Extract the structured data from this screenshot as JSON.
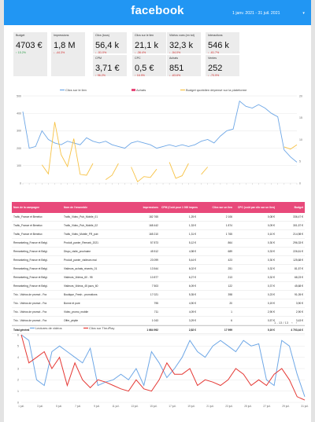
{
  "header": {
    "brand": "facebook",
    "date_range": "1 janv. 2021 - 31 juil. 2021"
  },
  "kpis": [
    {
      "label": "Budget",
      "value": "4703 €",
      "delta": "↑ 15.2%",
      "dir": "up"
    },
    {
      "label": "Impressions",
      "value": "1,8 M",
      "delta": "↓ -44.3%",
      "dir": "down"
    },
    {
      "label": "Clics (tous)",
      "value": "56,4 k",
      "delta": "↓ -51.0%",
      "dir": "down"
    },
    {
      "label": "Clics sur le lien",
      "value": "21,1 k",
      "delta": "↓ -36.4%",
      "dir": "down"
    },
    {
      "label": "Vidéos vues (en tot)",
      "value": "32,3 k",
      "delta": "↓ -54.0%",
      "dir": "down"
    },
    {
      "label": "Interactions",
      "value": "546 k",
      "delta": "↓ -61.7%",
      "dir": "down"
    },
    {
      "label": "CPM",
      "value": "3,71 €",
      "delta": "↑ 96.2%",
      "dir": "down"
    },
    {
      "label": "CPC",
      "value": "0,5 €",
      "delta": "↑ 16.9%",
      "dir": "down"
    },
    {
      "label": "Achats",
      "value": "851",
      "delta": "↓ -63.6%",
      "dir": "down"
    },
    {
      "label": "Ventes",
      "value": "252",
      "delta": "↓ -70.9%",
      "dir": "down"
    }
  ],
  "chart_data": [
    {
      "type": "line",
      "series": [
        {
          "name": "Clics sur le lien",
          "color": "#6ea7e6",
          "axis": "left",
          "values": [
            410,
            200,
            210,
            300,
            250,
            230,
            220,
            240,
            230,
            220,
            260,
            240,
            230,
            240,
            220,
            210,
            200,
            230,
            240,
            230,
            220,
            200,
            210,
            220,
            210,
            220,
            210,
            220,
            240,
            250,
            230,
            270,
            300,
            310,
            470,
            440,
            430,
            450,
            430,
            400,
            380,
            190,
            150,
            120
          ]
        },
        {
          "name": "Budget quotidien dépensé sur la plateforme",
          "color": "#f7c244",
          "axis": "right",
          "values": [
            null,
            null,
            null,
            4.2,
            2.1,
            14.0,
            6.5,
            3.8,
            10.2,
            2.0,
            1.8,
            4.5,
            null,
            0.8,
            1.8,
            4.5,
            null,
            3.7,
            0.3,
            1.5,
            1.3,
            3.2,
            null,
            4.8,
            1.1,
            1.7,
            4.5,
            null,
            2.0,
            3.7,
            null,
            null,
            null,
            null,
            null,
            null,
            null,
            null,
            null,
            null,
            null,
            8.3,
            7.8,
            8.8
          ]
        }
      ],
      "legend": [
        "Clics sur le lien",
        "Achats",
        "Budget quotidien dépensé sur la plateforme"
      ],
      "legend_colors": [
        "#6ea7e6",
        "#e8497a",
        "#f7c244"
      ],
      "left_ticks": [
        0,
        100,
        200,
        300,
        400,
        500
      ],
      "right_ticks": [
        0,
        5,
        10,
        15,
        20
      ],
      "ylim_left": [
        0,
        500
      ],
      "ylim_right": [
        0,
        20
      ],
      "grid": true,
      "legend_position": "top"
    },
    {
      "type": "line",
      "series": [
        {
          "name": "Lectures de vidéos",
          "color": "#6ea7e6",
          "values": [
            6,
            5.5,
            2,
            1.5,
            4.5,
            5,
            4.5,
            4,
            3.5,
            4.8,
            1.5,
            1.8,
            2,
            2.5,
            2,
            3,
            1.5,
            4.5,
            3.5,
            2.2,
            3,
            4,
            5.5,
            4.5,
            4,
            5,
            5.5,
            5,
            4.5,
            5.5,
            5,
            5.2,
            2,
            1.5,
            5.5,
            5,
            2.5,
            0.5
          ]
        },
        {
          "name": "Clics sur ThruPlay",
          "color": "#e53935",
          "values": [
            6,
            3.5,
            4,
            4.5,
            3,
            4,
            1.5,
            3.5,
            2,
            1.3,
            2,
            1.8,
            1.5,
            1.2,
            1,
            2,
            1.2,
            1,
            2,
            3.5,
            2.5,
            2.5,
            3,
            1.5,
            2,
            1.8,
            1.5,
            2,
            3,
            2.5,
            1.5,
            2,
            1.5,
            2.5,
            3,
            2,
            0.5,
            0.2
          ]
        }
      ],
      "legend": [
        "Lectures de vidéos",
        "Clics sur ThruPlay"
      ],
      "y_ticks": [
        0,
        1,
        2,
        3,
        4,
        5,
        6
      ],
      "x_ticks": [
        "1 juil.",
        "3 juil.",
        "5 juil.",
        "7 juil.",
        "9 juil.",
        "11 juil.",
        "13 juil.",
        "15 juil.",
        "17 juil.",
        "19 juil.",
        "21 juil.",
        "23 juil.",
        "25 juil.",
        "27 juil.",
        "29 juil.",
        "31 juil."
      ],
      "ylim": [
        0,
        6
      ],
      "grid": true,
      "legend_position": "top"
    }
  ],
  "table": {
    "headers": [
      "Nom de la campagne",
      "Nom de l'ensemble",
      "Impressions",
      "CPM (Coût pour 1 000 impressions)",
      "Clics sur un lien",
      "CPC (coût par clic sur un lien)",
      "Budget"
    ],
    "rows": [
      [
        "Trafic_France et Benelux",
        "Trafic_Video_Pub_Mobile_01",
        "182 765",
        "1,25 €",
        "2 106",
        "0,08 €",
        "336,47 €"
      ],
      [
        "Trafic_France et Benelux",
        "Trafic_Video_Pub_Mobile_02",
        "168 442",
        "1,33 €",
        "1 874",
        "0,09 €",
        "301,57 €"
      ],
      [
        "Trafic_France et Benelux",
        "Trafic_Vidéo_Mobile_FR_pub",
        "165 210",
        "1,31 €",
        "1 765",
        "0,10 €",
        "214,98 €"
      ],
      [
        "Remarketing_France et Belgi.",
        "Produit_panier_Remark_2021",
        "57 873",
        "5,12 €",
        "864",
        "0,30 €",
        "296,33 €"
      ],
      [
        "Remarketing_France et Belgi.",
        "Dispo_visite_prochaine",
        "45 512",
        "4,98 €",
        "689",
        "0,33 €",
        "226,61 €"
      ],
      [
        "Remarketing_France et Belgi.",
        "Produit_panier_visiteurs mai",
        "23 099",
        "5,44 €",
        "423",
        "0,30 €",
        "125,68 €"
      ],
      [
        "Remarketing_France et Belgi.",
        "Visiteurs_achats_récents_01",
        "13 544",
        "6,02 €",
        "251",
        "0,32 €",
        "81,57 €"
      ],
      [
        "Remarketing_France et Belgi.",
        "Visiteurs_Vidéos_60 - 95",
        "10 877",
        "6,27 €",
        "213",
        "0,32 €",
        "68,23 €"
      ],
      [
        "Remarketing_France et Belgi.",
        "Visiteurs_Vidéos_45 jours_60",
        "7 503",
        "6,09 €",
        "122",
        "0,37 €",
        "45,68 €"
      ],
      [
        "Trio - Vidéos de promot - Fra",
        "Boutique_Fresh - promotions",
        "17 021",
        "5,35 €",
        "398",
        "0,23 €",
        "91,05 €"
      ],
      [
        "Trio - Vidéos de promot - Fra",
        "Bonne et pure",
        "795",
        "4,90 €",
        "20",
        "0,19 €",
        "3,90 €"
      ],
      [
        "Trio - Vidéos de promot - Fra",
        "Vidéo_promo_mobile",
        "711",
        "4,09 €",
        "1",
        "2,90 €",
        "2,90 €"
      ],
      [
        "Trio - Vidéos de promot - Fra",
        "Offre_pépite",
        "1 043",
        "3,29 €",
        "6",
        "0,57 €",
        "3,43 €"
      ]
    ],
    "total": [
      "Total général",
      "",
      "1 664 992",
      "2,82 €",
      "17 999",
      "0,19 €",
      "4 703,44 €"
    ],
    "pager": "1 - 13 / 13"
  }
}
